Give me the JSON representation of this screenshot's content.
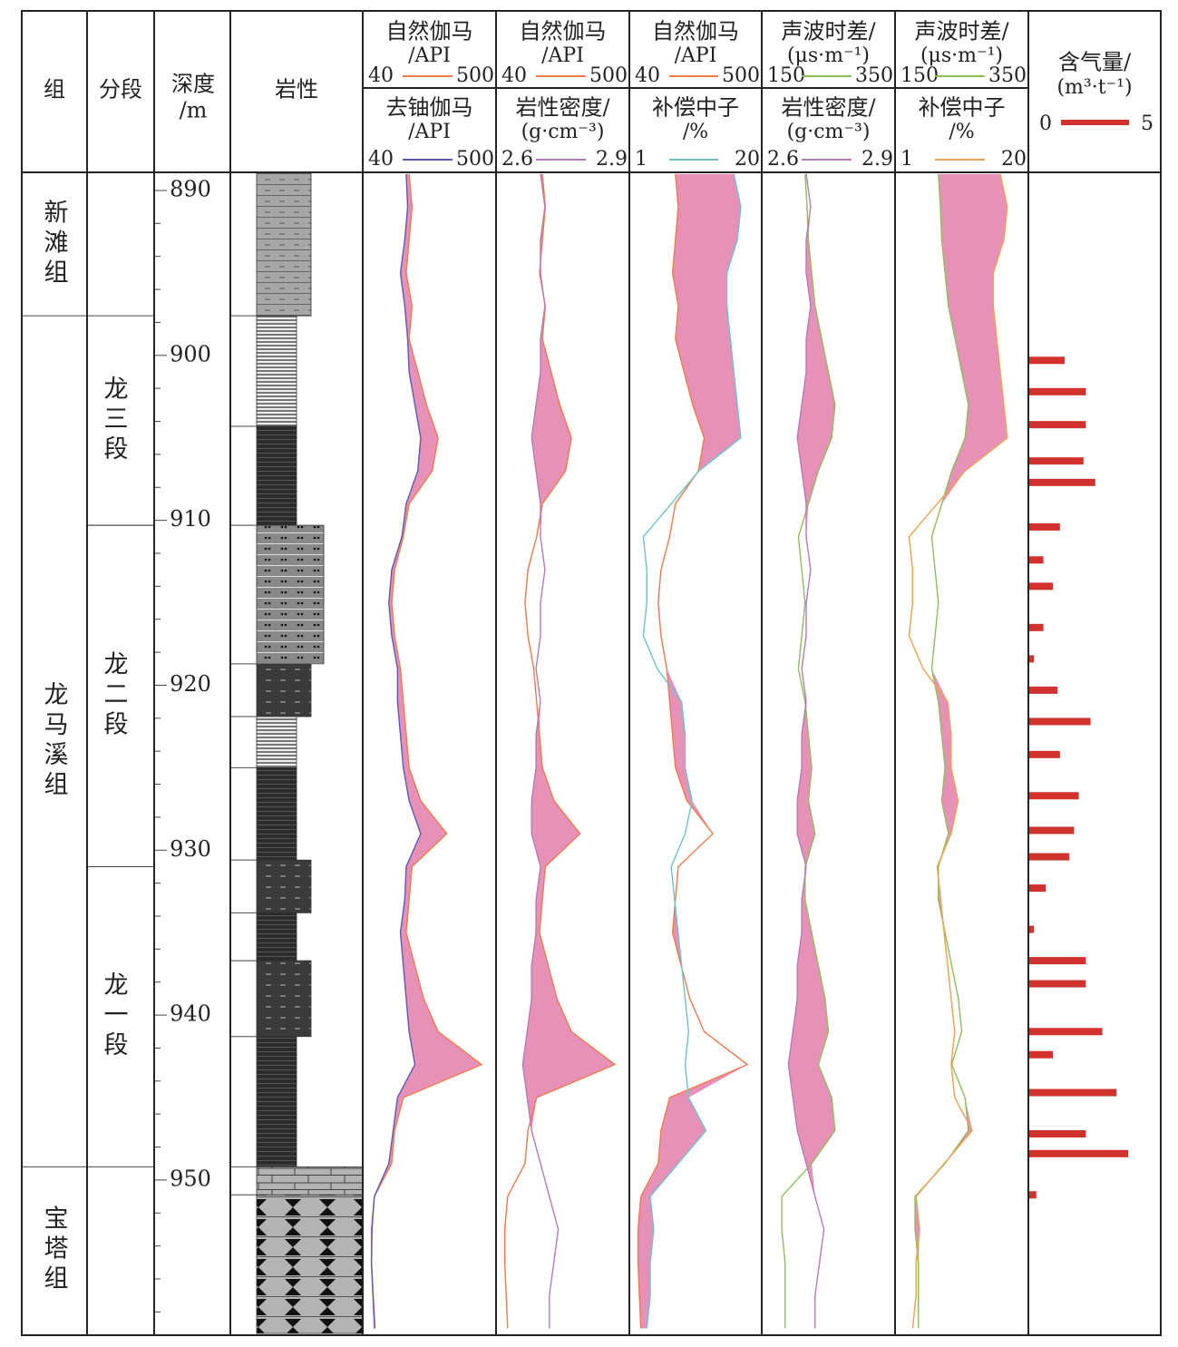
{
  "chart_data": {
    "type": "well-log",
    "header": {
      "formation": "组",
      "member": "分段",
      "depth": "深度",
      "depth_unit": "/m",
      "lithology": "岩性"
    },
    "ylim": [
      888.9,
      959.3
    ],
    "yticks": [
      890,
      900,
      910,
      920,
      930,
      940,
      950
    ],
    "yticks_minor": [
      892,
      894,
      896,
      898,
      902,
      904,
      906,
      908,
      912,
      914,
      916,
      918,
      922,
      924,
      926,
      928,
      932,
      934,
      936,
      938,
      942,
      944,
      946,
      948,
      952,
      954,
      956,
      958
    ],
    "formations": [
      {
        "name": "新滩组",
        "top": 888.9,
        "bottom": 897.6
      },
      {
        "name": "龙马溪组",
        "top": 897.6,
        "bottom": 949.2
      },
      {
        "name": "宝塔组",
        "top": 949.2,
        "bottom": 959.3
      }
    ],
    "members": [
      {
        "name": "龙三段",
        "top": 897.6,
        "bottom": 910.3
      },
      {
        "name": "龙二段",
        "top": 910.3,
        "bottom": 931
      },
      {
        "name": "龙一段",
        "top": 931,
        "bottom": 949.2
      }
    ],
    "lithology": [
      {
        "top": 888.9,
        "bottom": 897.6,
        "pattern": "dash"
      },
      {
        "top": 897.6,
        "bottom": 904.3,
        "pattern": "stripe"
      },
      {
        "top": 904.3,
        "bottom": 910.3,
        "pattern": "black"
      },
      {
        "top": 910.3,
        "bottom": 918.7,
        "pattern": "dot"
      },
      {
        "top": 918.7,
        "bottom": 921.9,
        "pattern": "darkdash"
      },
      {
        "top": 921.9,
        "bottom": 925.0,
        "pattern": "stripe"
      },
      {
        "top": 925.0,
        "bottom": 930.6,
        "pattern": "black"
      },
      {
        "top": 930.6,
        "bottom": 933.8,
        "pattern": "darkdash"
      },
      {
        "top": 933.8,
        "bottom": 936.7,
        "pattern": "black"
      },
      {
        "top": 936.7,
        "bottom": 941.3,
        "pattern": "darkdash"
      },
      {
        "top": 941.3,
        "bottom": 949.2,
        "pattern": "black"
      },
      {
        "top": 949.2,
        "bottom": 950.9,
        "pattern": "lime"
      },
      {
        "top": 950.9,
        "bottom": 959.3,
        "pattern": "limex"
      }
    ],
    "depths": [
      889,
      891,
      893,
      895,
      897,
      899,
      901,
      903,
      905,
      907,
      909,
      911,
      913,
      915,
      917,
      919,
      921,
      923,
      925,
      927,
      929,
      931,
      933,
      935,
      937,
      939,
      941,
      943,
      945,
      947,
      949,
      951,
      953,
      955,
      957,
      959
    ],
    "fill_color": "#e891b8",
    "tracks": [
      {
        "fill_where": "first-right",
        "curves": [
          {
            "name": "自然伽马",
            "unit": "/API",
            "xlim": [
              40,
              500
            ],
            "color": "#f07a4a",
            "values": [
              200,
              210,
              200,
              190,
              210,
              200,
              230,
              260,
              300,
              280,
              200,
              180,
              150,
              140,
              150,
              170,
              180,
              190,
              200,
              240,
              330,
              210,
              200,
              190,
              220,
              250,
              300,
              450,
              180,
              150,
              140,
              80,
              70,
              70,
              75,
              80
            ]
          },
          {
            "name": "去铀伽马",
            "unit": "/API",
            "xlim": [
              40,
              500
            ],
            "color": "#5a5ab8",
            "values": [
              190,
              195,
              185,
              170,
              185,
              195,
              200,
              220,
              240,
              230,
              190,
              175,
              140,
              130,
              140,
              160,
              160,
              170,
              180,
              200,
              240,
              190,
              185,
              170,
              180,
              190,
              200,
              220,
              160,
              145,
              130,
              80,
              72,
              70,
              76,
              82
            ]
          }
        ]
      },
      {
        "fill_where": "first-right",
        "curves": [
          {
            "name": "自然伽马",
            "unit": "/API",
            "xlim": [
              40,
              500
            ],
            "color": "#f07a4a",
            "values": [
              200,
              210,
              200,
              190,
              210,
              200,
              230,
              260,
              300,
              280,
              200,
              180,
              150,
              140,
              150,
              170,
              180,
              190,
              200,
              240,
              330,
              210,
              200,
              190,
              220,
              250,
              300,
              450,
              180,
              150,
              140,
              80,
              70,
              70,
              75,
              80
            ]
          },
          {
            "name": "岩性密度/",
            "unit": "(g·cm⁻³)",
            "xlim": [
              2.6,
              2.9
            ],
            "color": "#b77ab8",
            "values": [
              2.7,
              2.71,
              2.7,
              2.7,
              2.71,
              2.7,
              2.7,
              2.69,
              2.68,
              2.69,
              2.7,
              2.7,
              2.71,
              2.7,
              2.7,
              2.69,
              2.7,
              2.69,
              2.69,
              2.68,
              2.68,
              2.7,
              2.69,
              2.69,
              2.68,
              2.68,
              2.67,
              2.66,
              2.67,
              2.68,
              2.7,
              2.72,
              2.74,
              2.73,
              2.72,
              2.72
            ]
          }
        ]
      },
      {
        "fill_where": "second-right",
        "curves": [
          {
            "name": "自然伽马",
            "unit": "/API",
            "xlim": [
              40,
              500
            ],
            "color": "#f07a4a",
            "values": [
              200,
              210,
              200,
              190,
              210,
              200,
              230,
              260,
              300,
              280,
              200,
              180,
              150,
              140,
              150,
              170,
              180,
              190,
              200,
              240,
              330,
              210,
              200,
              190,
              220,
              250,
              300,
              450,
              180,
              150,
              140,
              80,
              70,
              70,
              75,
              80
            ]
          },
          {
            "name": "补偿中子",
            "unit": "/%",
            "xlim": [
              1,
              20
            ],
            "color": "#6cc3cc",
            "values": [
              16,
              17,
              16.5,
              15,
              15,
              15.5,
              16,
              16.5,
              17,
              11,
              7,
              3,
              3.5,
              3.5,
              3,
              5,
              8.5,
              9,
              9,
              10,
              9,
              7,
              7.5,
              8,
              8.5,
              9,
              9.5,
              9,
              9.5,
              12,
              8,
              4,
              4.5,
              4,
              4,
              3.5
            ]
          }
        ]
      },
      {
        "fill_where": "first-right",
        "curves": [
          {
            "name": "声波时差/",
            "unit": "(μs·m⁻¹)",
            "xlim": [
              150,
              350
            ],
            "color": "#8cbf5a",
            "values": [
              215,
              218,
              220,
              225,
              230,
              240,
              250,
              260,
              255,
              235,
              220,
              205,
              210,
              215,
              210,
              205,
              215,
              220,
              225,
              220,
              230,
              215,
              215,
              225,
              235,
              245,
              250,
              235,
              255,
              260,
              225,
              180,
              180,
              185,
              185,
              185
            ]
          },
          {
            "name": "岩性密度/",
            "unit": "(g·cm⁻³)",
            "xlim": [
              2.6,
              2.9
            ],
            "color": "#b77ab8",
            "values": [
              2.7,
              2.71,
              2.7,
              2.7,
              2.71,
              2.7,
              2.7,
              2.69,
              2.68,
              2.69,
              2.7,
              2.7,
              2.71,
              2.7,
              2.7,
              2.69,
              2.7,
              2.69,
              2.69,
              2.68,
              2.68,
              2.7,
              2.69,
              2.69,
              2.68,
              2.68,
              2.67,
              2.66,
              2.67,
              2.68,
              2.7,
              2.72,
              2.74,
              2.73,
              2.72,
              2.72
            ]
          }
        ]
      },
      {
        "fill_where": "second-right",
        "curves": [
          {
            "name": "声波时差/",
            "unit": "(μs·m⁻¹)",
            "xlim": [
              150,
              350
            ],
            "color": "#8cbf5a",
            "values": [
              215,
              218,
              220,
              225,
              230,
              240,
              250,
              260,
              255,
              235,
              220,
              205,
              210,
              215,
              210,
              205,
              215,
              220,
              225,
              220,
              230,
              215,
              215,
              225,
              235,
              245,
              250,
              235,
              255,
              260,
              225,
              180,
              180,
              185,
              185,
              185
            ]
          },
          {
            "name": "补偿中子",
            "unit": "/%",
            "xlim": [
              1,
              20
            ],
            "color": "#f0a050",
            "values": [
              16,
              17,
              16.5,
              15,
              15,
              15.5,
              16,
              16.5,
              17,
              11,
              7,
              3,
              3.5,
              3.5,
              3,
              5,
              8.5,
              9,
              9,
              10,
              9,
              7,
              7.5,
              8,
              8.5,
              9,
              9.5,
              9,
              9.5,
              12,
              8,
              4,
              4.5,
              4,
              4,
              3.5
            ]
          }
        ]
      }
    ],
    "gas": {
      "name": "含气量/",
      "unit": "(m³·t⁻¹)",
      "xlim": [
        0,
        5
      ],
      "color": "#d2322d",
      "depths": [
        900.3,
        902.2,
        904.2,
        906.4,
        907.7,
        910.4,
        912.4,
        914.0,
        916.5,
        918.4,
        920.3,
        922.2,
        924.2,
        926.7,
        928.8,
        930.4,
        932.3,
        934.8,
        936.7,
        938.1,
        941.0,
        942.4,
        944.7,
        947.2,
        948.4,
        950.9
      ],
      "values": [
        1.5,
        2.4,
        2.4,
        2.3,
        2.8,
        1.3,
        0.6,
        1.0,
        0.6,
        0.2,
        1.2,
        2.6,
        1.3,
        2.1,
        1.9,
        1.7,
        0.7,
        0.2,
        2.4,
        2.4,
        3.1,
        1.0,
        3.7,
        2.4,
        4.2,
        0.3
      ]
    }
  }
}
